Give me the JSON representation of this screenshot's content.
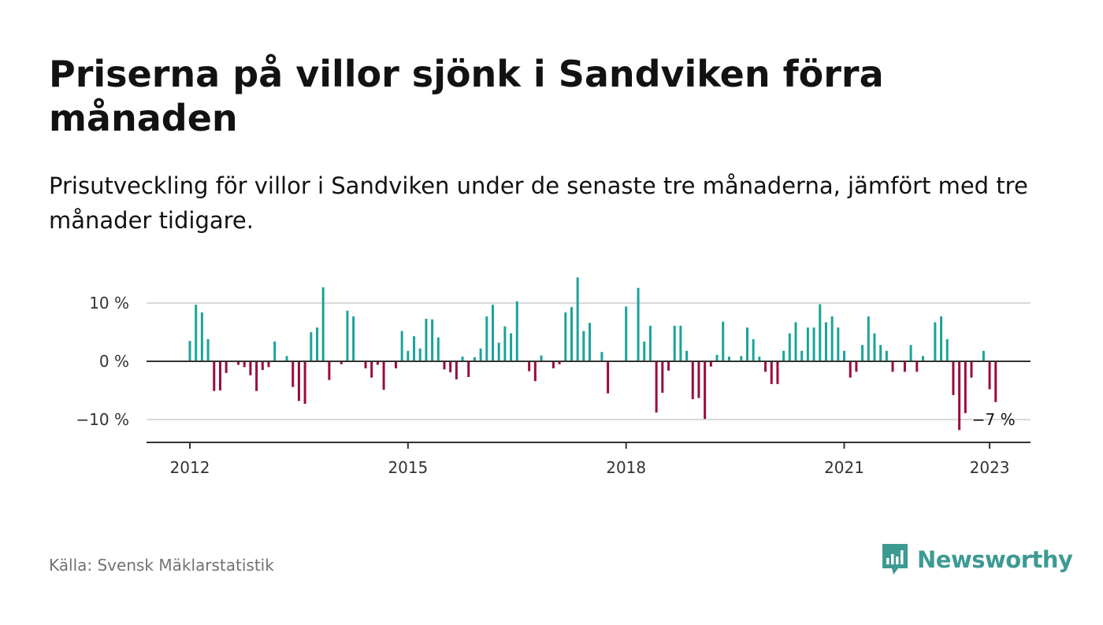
{
  "header": {
    "title": "Priserna på villor sjönk i Sandviken förra månaden",
    "subtitle": "Prisutveckling för villor i Sandviken under de senaste tre månaderna, jämfört med tre månader tidigare."
  },
  "footer": {
    "source": "Källa: Svensk Mäklarstatistik",
    "brand": "Newsworthy"
  },
  "colors": {
    "positive": "#1aa39a",
    "negative": "#9b0a3f",
    "grid": "#d9d9d9",
    "axis": "#333333",
    "brand": "#3d9a92"
  },
  "chart_data": {
    "type": "bar",
    "ylim": [
      -14,
      15
    ],
    "y_ticks": [
      {
        "value": 10,
        "label": "10 %"
      },
      {
        "value": 0,
        "label": "0 %"
      },
      {
        "value": -10,
        "label": "−10 %"
      }
    ],
    "x_ticks": [
      {
        "label": "2012",
        "index": 0
      },
      {
        "label": "2015",
        "index": 36
      },
      {
        "label": "2018",
        "index": 72
      },
      {
        "label": "2021",
        "index": 108
      },
      {
        "label": "2023",
        "index": 132
      }
    ],
    "start": "2012-01",
    "annotation": {
      "label": "−7 %"
    },
    "values": [
      3.5,
      9.7,
      8.4,
      3.8,
      -5.1,
      -5.0,
      -2.0,
      0,
      -0.6,
      -1.0,
      -2.4,
      -5.1,
      -1.5,
      -1.0,
      3.4,
      0,
      0.9,
      -4.4,
      -6.8,
      -7.3,
      5.0,
      5.8,
      12.7,
      -3.2,
      0,
      -0.5,
      8.7,
      7.7,
      0,
      -1.2,
      -2.8,
      -0.6,
      -4.9,
      0,
      -1.2,
      5.2,
      1.8,
      4.3,
      2.2,
      7.3,
      7.2,
      4.1,
      -1.4,
      -1.9,
      -3.1,
      0.8,
      -2.7,
      0.7,
      2.2,
      7.7,
      9.7,
      3.2,
      6.0,
      4.8,
      10.3,
      0,
      -1.7,
      -3.4,
      1.0,
      0,
      -1.2,
      -0.5,
      8.4,
      9.3,
      14.4,
      5.2,
      6.6,
      0,
      1.6,
      -5.5,
      0,
      0,
      9.4,
      0,
      12.6,
      3.4,
      6.1,
      -8.8,
      -5.4,
      -1.6,
      6.1,
      6.1,
      1.8,
      -6.5,
      -6.3,
      -9.9,
      -0.9,
      1.1,
      6.8,
      0.8,
      0,
      0.9,
      5.8,
      3.8,
      0.8,
      -1.8,
      -3.9,
      -3.9,
      1.8,
      4.8,
      6.7,
      1.8,
      5.8,
      5.8,
      9.8,
      6.7,
      7.7,
      5.8,
      1.8,
      -2.8,
      -1.8,
      2.8,
      7.7,
      4.8,
      2.8,
      1.8,
      -1.8,
      0,
      -1.8,
      2.8,
      -1.8,
      0.9,
      0,
      6.7,
      7.7,
      3.8,
      -5.8,
      -11.8,
      -8.9,
      -2.8,
      0,
      1.8,
      -4.8,
      -7.0
    ]
  }
}
